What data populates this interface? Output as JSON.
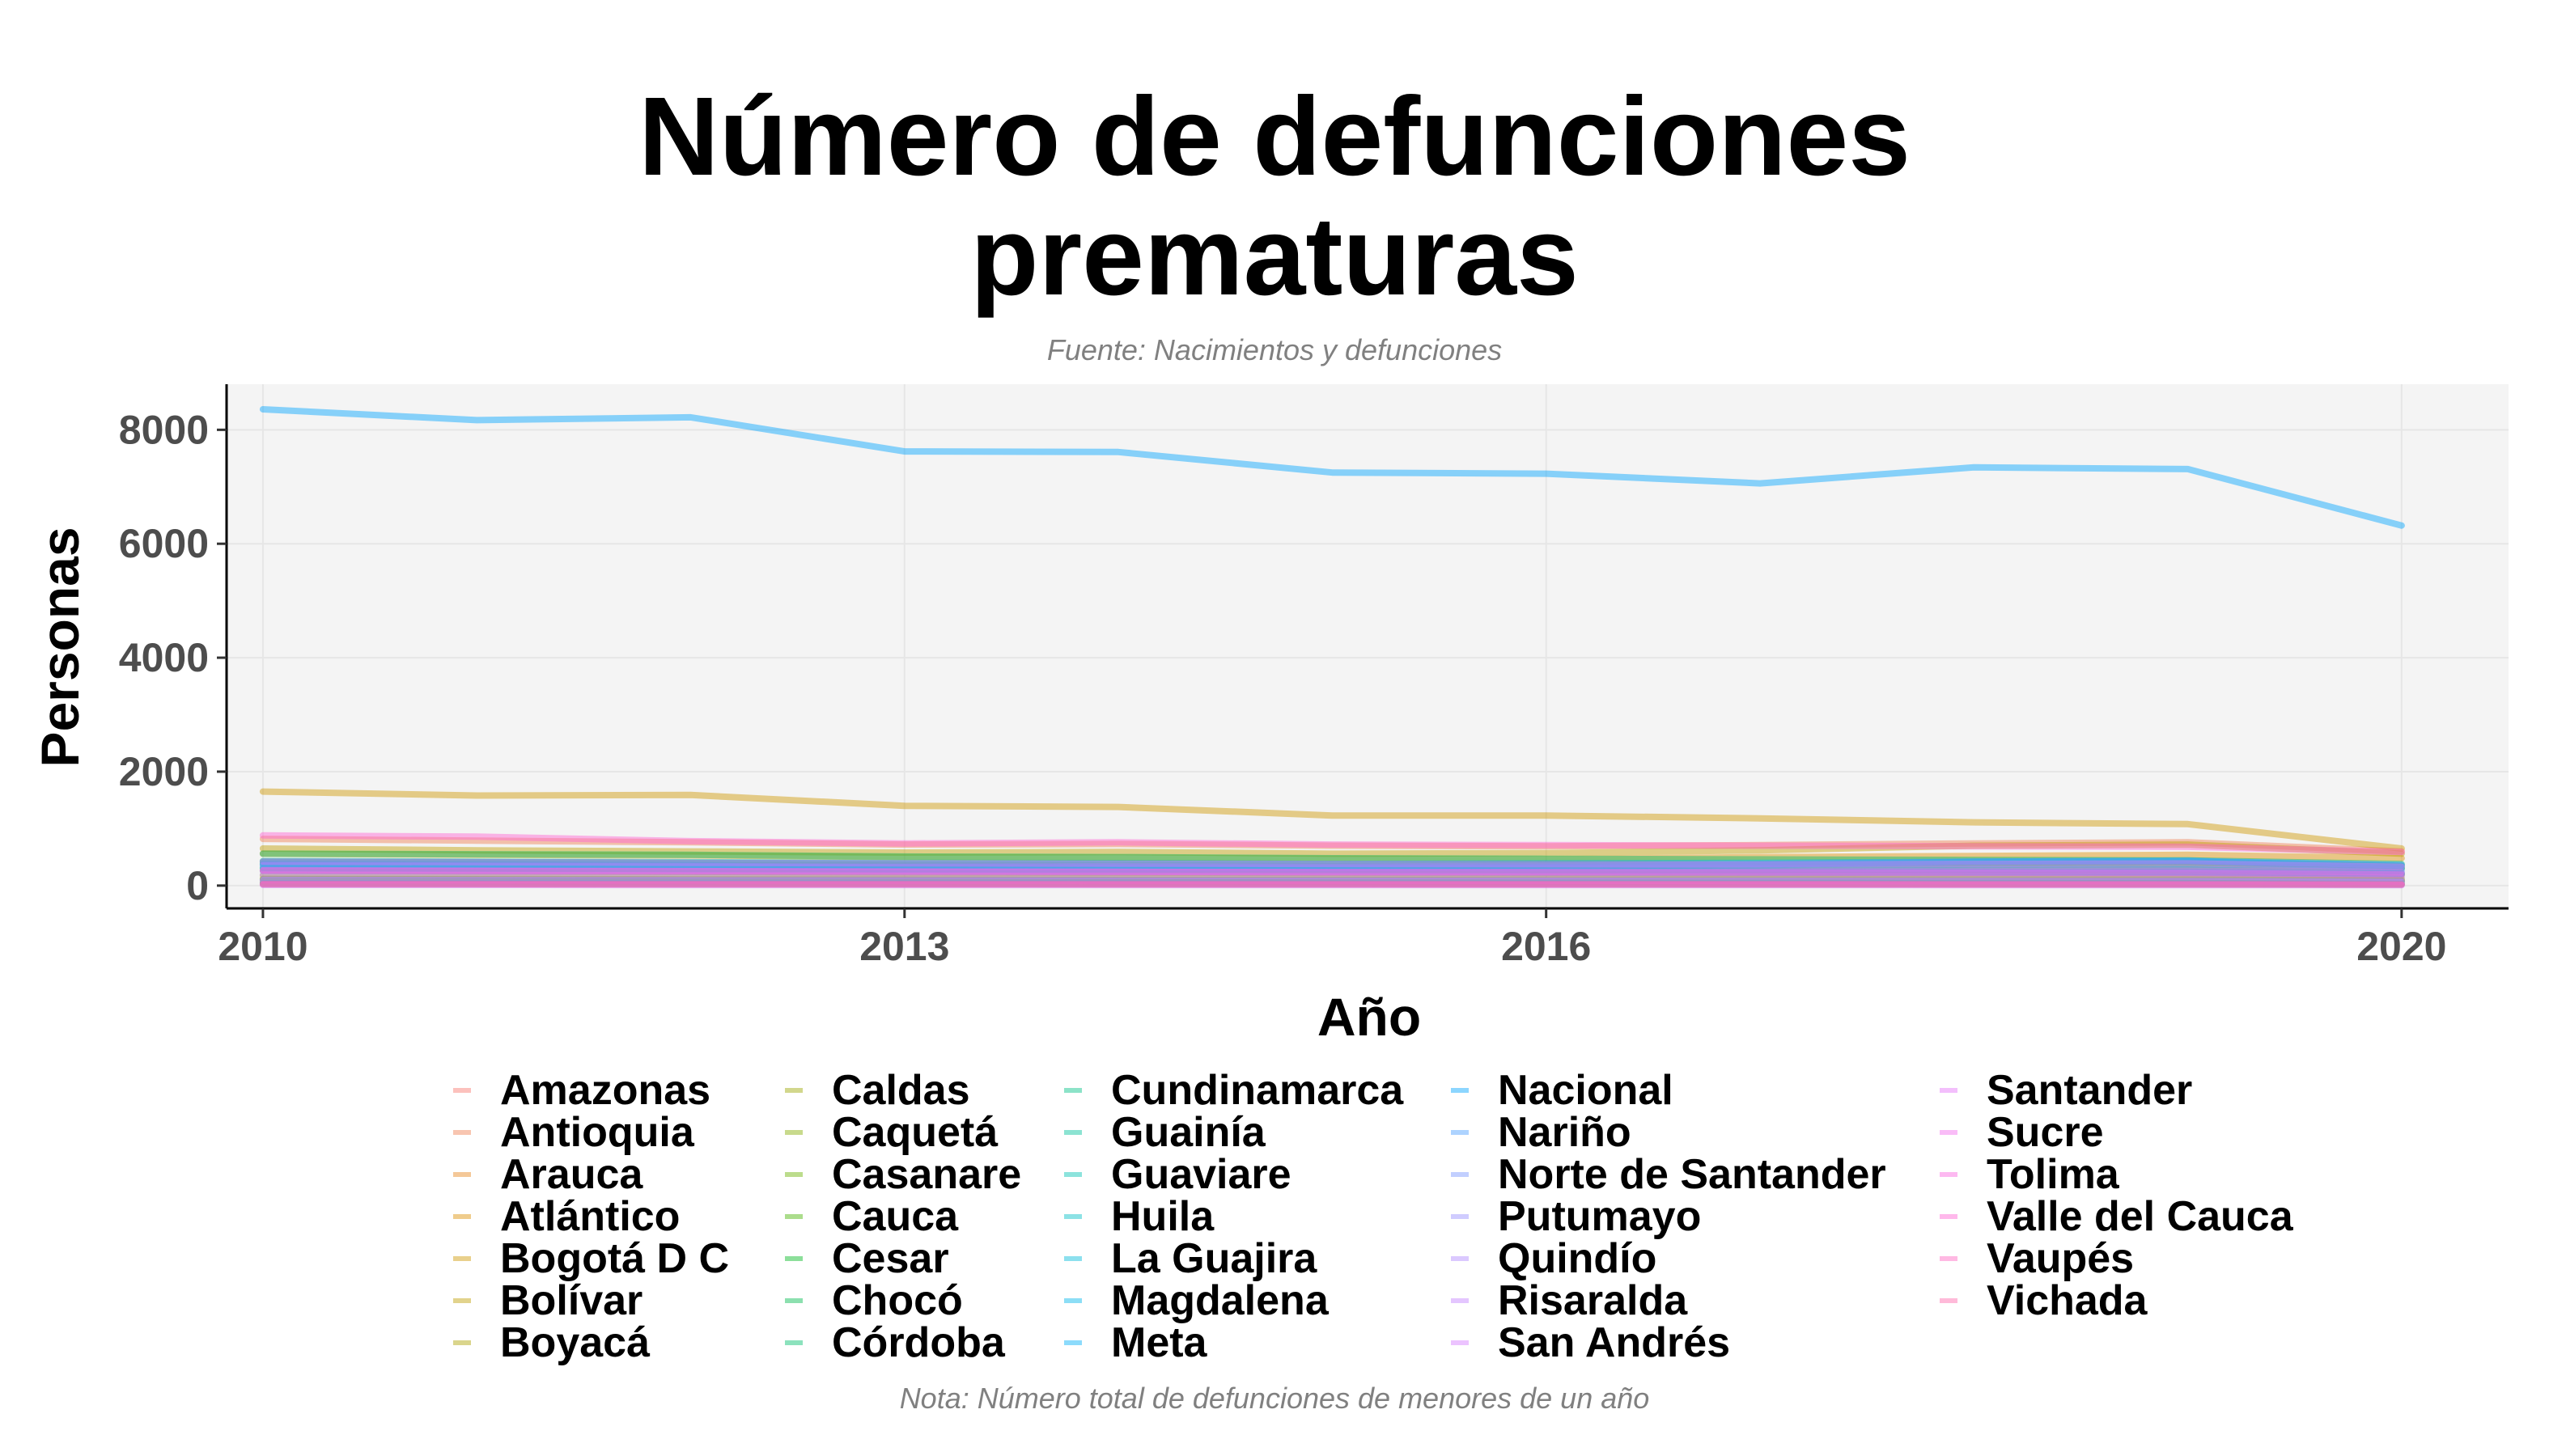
{
  "chart_data": {
    "type": "line",
    "title": "Número de defunciones prematuras",
    "subtitle": "Fuente: Nacimientos y defunciones",
    "caption": "Nota: Número total de defunciones de menores de un año",
    "xlabel": "Año",
    "ylabel": "Personas",
    "xlim": [
      2009.83,
      2020.5
    ],
    "ylim": [
      -400,
      8800
    ],
    "x_ticks": [
      2010,
      2013,
      2016,
      2020
    ],
    "y_ticks": [
      0,
      2000,
      4000,
      6000,
      8000
    ],
    "grid": true,
    "legend_position": "bottom",
    "x": [
      2010,
      2011,
      2012,
      2013,
      2014,
      2015,
      2016,
      2017,
      2018,
      2019,
      2020
    ],
    "series": [
      {
        "name": "Amazonas",
        "color": "#F8766D",
        "values": [
          45,
          44,
          42,
          40,
          39,
          38,
          37,
          36,
          35,
          34,
          30
        ]
      },
      {
        "name": "Antioquia",
        "color": "#F07E4F",
        "values": [
          820,
          790,
          760,
          720,
          730,
          700,
          690,
          710,
          740,
          760,
          600
        ]
      },
      {
        "name": "Arauca",
        "color": "#E7861B",
        "values": [
          80,
          78,
          76,
          74,
          72,
          70,
          70,
          72,
          75,
          78,
          65
        ]
      },
      {
        "name": "Atlántico",
        "color": "#DB8E00",
        "values": [
          560,
          540,
          530,
          500,
          490,
          470,
          460,
          500,
          520,
          540,
          480
        ]
      },
      {
        "name": "Bogotá D C",
        "color": "#CE9700",
        "values": [
          1650,
          1580,
          1590,
          1400,
          1380,
          1230,
          1230,
          1180,
          1110,
          1080,
          650
        ]
      },
      {
        "name": "Bolívar",
        "color": "#BF9E00",
        "values": [
          650,
          620,
          600,
          580,
          590,
          560,
          570,
          620,
          700,
          720,
          560
        ]
      },
      {
        "name": "Boyacá",
        "color": "#AEA200",
        "values": [
          260,
          250,
          240,
          230,
          225,
          220,
          215,
          210,
          205,
          200,
          180
        ]
      },
      {
        "name": "Caldas",
        "color": "#9CA700",
        "values": [
          180,
          170,
          165,
          160,
          155,
          150,
          148,
          145,
          140,
          138,
          120
        ]
      },
      {
        "name": "Caquetá",
        "color": "#86AC00",
        "values": [
          120,
          115,
          110,
          105,
          100,
          98,
          96,
          95,
          94,
          92,
          85
        ]
      },
      {
        "name": "Casanare",
        "color": "#6BB100",
        "values": [
          110,
          105,
          100,
          98,
          95,
          92,
          90,
          88,
          86,
          84,
          78
        ]
      },
      {
        "name": "Cauca",
        "color": "#45B400",
        "values": [
          420,
          410,
          400,
          380,
          375,
          360,
          355,
          350,
          345,
          340,
          300
        ]
      },
      {
        "name": "Cesar",
        "color": "#00B81F",
        "values": [
          380,
          370,
          360,
          350,
          345,
          340,
          350,
          380,
          410,
          420,
          350
        ]
      },
      {
        "name": "Chocó",
        "color": "#00BB4E",
        "values": [
          310,
          300,
          290,
          280,
          270,
          260,
          255,
          250,
          245,
          240,
          210
        ]
      },
      {
        "name": "Córdoba",
        "color": "#00BE6C",
        "values": [
          560,
          550,
          540,
          510,
          500,
          480,
          470,
          460,
          450,
          440,
          380
        ]
      },
      {
        "name": "Cundinamarca",
        "color": "#00C085",
        "values": [
          430,
          420,
          410,
          400,
          395,
          380,
          375,
          370,
          365,
          360,
          320
        ]
      },
      {
        "name": "Guainía",
        "color": "#00C19C",
        "values": [
          25,
          24,
          23,
          22,
          22,
          21,
          21,
          20,
          20,
          20,
          18
        ]
      },
      {
        "name": "Guaviare",
        "color": "#00C1B2",
        "values": [
          40,
          39,
          38,
          37,
          36,
          35,
          35,
          34,
          34,
          33,
          30
        ]
      },
      {
        "name": "Huila",
        "color": "#00BFC6",
        "values": [
          300,
          290,
          280,
          270,
          265,
          260,
          255,
          250,
          245,
          240,
          215
        ]
      },
      {
        "name": "La Guajira",
        "color": "#00BBD9",
        "values": [
          380,
          370,
          360,
          280,
          290,
          300,
          320,
          360,
          420,
          440,
          300
        ]
      },
      {
        "name": "Magdalena",
        "color": "#00B6EA",
        "values": [
          420,
          410,
          400,
          390,
          385,
          380,
          390,
          400,
          420,
          430,
          360
        ]
      },
      {
        "name": "Meta",
        "color": "#00AFF9",
        "values": [
          260,
          255,
          250,
          245,
          240,
          235,
          230,
          228,
          226,
          224,
          200
        ]
      },
      {
        "name": "Nacional",
        "color": "#00A5FF",
        "values": [
          8360,
          8170,
          8220,
          7620,
          7610,
          7250,
          7230,
          7060,
          7340,
          7310,
          6320
        ]
      },
      {
        "name": "Nariño",
        "color": "#4A9DFF",
        "values": [
          350,
          340,
          330,
          320,
          315,
          310,
          305,
          300,
          295,
          290,
          255
        ]
      },
      {
        "name": "Norte de Santander",
        "color": "#7895FF",
        "values": [
          360,
          350,
          340,
          330,
          340,
          330,
          350,
          380,
          420,
          430,
          360
        ]
      },
      {
        "name": "Putumayo",
        "color": "#978DFF",
        "values": [
          90,
          88,
          86,
          84,
          82,
          80,
          79,
          78,
          77,
          76,
          68
        ]
      },
      {
        "name": "Quindío",
        "color": "#AF88FF",
        "values": [
          100,
          96,
          93,
          90,
          88,
          86,
          84,
          82,
          80,
          78,
          70
        ]
      },
      {
        "name": "Risaralda",
        "color": "#C380FF",
        "values": [
          190,
          185,
          180,
          175,
          170,
          165,
          162,
          160,
          158,
          155,
          140
        ]
      },
      {
        "name": "San Andrés",
        "color": "#D579FF",
        "values": [
          12,
          12,
          11,
          11,
          10,
          10,
          10,
          10,
          9,
          9,
          8
        ]
      },
      {
        "name": "Santander",
        "color": "#E570F8",
        "values": [
          420,
          410,
          400,
          390,
          385,
          380,
          375,
          370,
          380,
          390,
          330
        ]
      },
      {
        "name": "Sucre",
        "color": "#F16AEE",
        "values": [
          260,
          255,
          250,
          245,
          240,
          235,
          240,
          250,
          260,
          265,
          230
        ]
      },
      {
        "name": "Tolima",
        "color": "#FA64E1",
        "values": [
          270,
          262,
          255,
          248,
          242,
          236,
          232,
          228,
          224,
          220,
          195
        ]
      },
      {
        "name": "Valle del Cauca",
        "color": "#FF62D2",
        "values": [
          880,
          860,
          780,
          740,
          760,
          720,
          710,
          700,
          690,
          680,
          590
        ]
      },
      {
        "name": "Vaupés",
        "color": "#FF63C0",
        "values": [
          20,
          20,
          19,
          19,
          18,
          18,
          18,
          17,
          17,
          17,
          15
        ]
      },
      {
        "name": "Vichada",
        "color": "#FF67AB",
        "values": [
          30,
          29,
          28,
          28,
          27,
          27,
          26,
          26,
          25,
          25,
          22
        ]
      }
    ]
  }
}
